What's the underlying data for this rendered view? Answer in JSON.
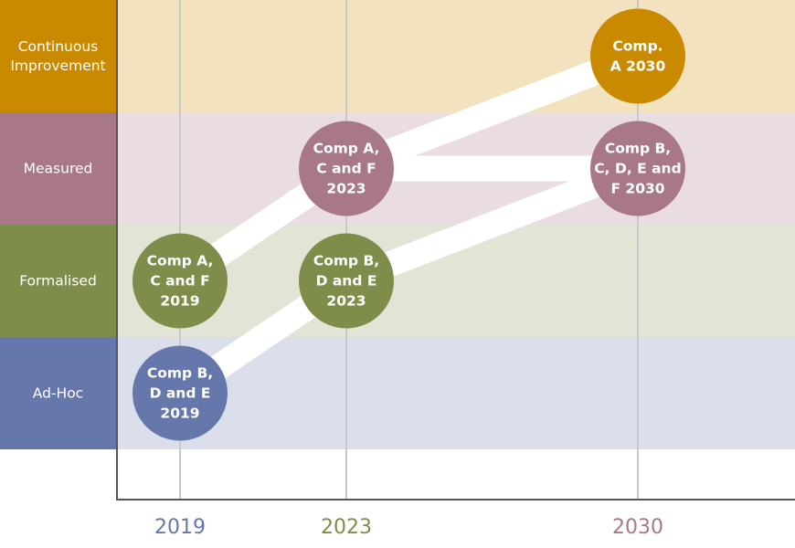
{
  "colors": {
    "continuous": "#c98a00",
    "measured": "#a87888",
    "formalised": "#7f8d4b",
    "adhoc": "#6677ac",
    "continuous_band": "#f2e2be",
    "measured_band": "#eadde2",
    "formalised_band": "#e2e5d5",
    "adhoc_band": "#dbdfeb",
    "gridline": "#c8c8c8",
    "axis": "#555555"
  },
  "levels": [
    {
      "id": "continuous",
      "lines": [
        "Continuous",
        "Improvement"
      ]
    },
    {
      "id": "measured",
      "lines": [
        "Measured"
      ]
    },
    {
      "id": "formalised",
      "lines": [
        "Formalised"
      ]
    },
    {
      "id": "adhoc",
      "lines": [
        "Ad-Hoc"
      ]
    }
  ],
  "years": [
    {
      "label": "2019",
      "color": "#6677ac"
    },
    {
      "label": "2023",
      "color": "#7f8d4b"
    },
    {
      "label": "2030",
      "color": "#a87888"
    }
  ],
  "nodes": [
    {
      "id": "bde-2019",
      "year": "2019",
      "level": "adhoc",
      "color": "#6677ac",
      "lines": [
        "Comp B,",
        "D and E",
        "2019"
      ]
    },
    {
      "id": "acf-2019",
      "year": "2019",
      "level": "formalised",
      "color": "#7f8d4b",
      "lines": [
        "Comp A,",
        "C and F",
        "2019"
      ]
    },
    {
      "id": "acf-2023",
      "year": "2023",
      "level": "measured",
      "color": "#a87888",
      "lines": [
        "Comp A,",
        "C and F",
        "2023"
      ]
    },
    {
      "id": "bde-2023",
      "year": "2023",
      "level": "formalised",
      "color": "#7f8d4b",
      "lines": [
        "Comp B,",
        "D and E",
        "2023"
      ]
    },
    {
      "id": "a-2030",
      "year": "2030",
      "level": "continuous",
      "color": "#c98a00",
      "lines": [
        "Comp.",
        "A 2030"
      ]
    },
    {
      "id": "bcdef-2030",
      "year": "2030",
      "level": "measured",
      "color": "#a87888",
      "lines": [
        "Comp B,",
        "C, D, E and",
        "F 2030"
      ]
    }
  ],
  "paths": [
    {
      "from": "acf-2019",
      "to": "acf-2023"
    },
    {
      "from": "acf-2023",
      "to": "a-2030"
    },
    {
      "from": "acf-2023",
      "to": "bcdef-2030"
    },
    {
      "from": "bde-2019",
      "to": "bde-2023"
    },
    {
      "from": "bde-2023",
      "to": "bcdef-2030"
    }
  ]
}
